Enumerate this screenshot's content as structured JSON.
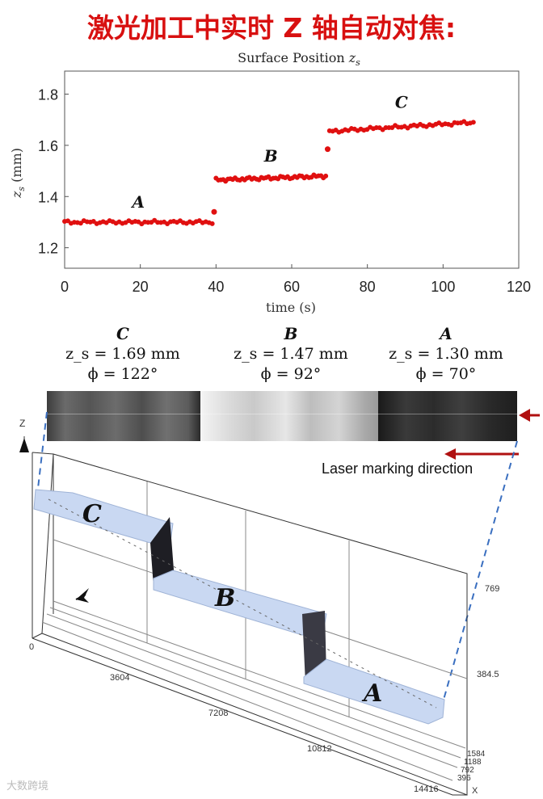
{
  "header": {
    "title": "激光加工中实时 Z 轴自动对焦:"
  },
  "chart_data": {
    "type": "scatter",
    "title": "Surface Position z_s",
    "xlabel": "time (s)",
    "ylabel": "z_s (mm)",
    "xlim": [
      0,
      120
    ],
    "ylim": [
      1.12,
      1.89
    ],
    "xticks": [
      0,
      20,
      40,
      60,
      80,
      100,
      120
    ],
    "yticks": [
      1.2,
      1.4,
      1.6,
      1.8
    ],
    "marker_color": "#e01010",
    "segments": [
      {
        "label": "A",
        "t_start": 0,
        "t_end": 39,
        "z_start": 1.3,
        "z_end": 1.3
      },
      {
        "label": "B",
        "t_start": 40,
        "t_end": 69,
        "z_start": 1.465,
        "z_end": 1.48
      },
      {
        "label": "C",
        "t_start": 70,
        "t_end": 108,
        "z_start": 1.655,
        "z_end": 1.69
      }
    ],
    "transition_points": [
      {
        "x": 39.5,
        "y": 1.34
      },
      {
        "x": 69.5,
        "y": 1.585
      }
    ]
  },
  "labels": {
    "title_prefix": "Surface Position ",
    "title_var": "z",
    "title_sub": "s",
    "ylabel_var": "z",
    "ylabel_sub": "s",
    "ylabel_unit": " (mm)",
    "xlabel": "time (s)"
  },
  "annotations": [
    {
      "zone": "C",
      "zs": "z_s = 1.69 mm",
      "phi": "ϕ = 122°"
    },
    {
      "zone": "B",
      "zs": "z_s = 1.47 mm",
      "phi": "ϕ = 92°"
    },
    {
      "zone": "A",
      "zs": "z_s = 1.30 mm",
      "phi": "ϕ = 70°"
    }
  ],
  "laser": {
    "label": "Laser marking direction",
    "arrow_color": "#b01010"
  },
  "diagram": {
    "z_axis_label": "Z",
    "x_axis_label": "X",
    "left_ticks": [
      "0",
      "3604",
      "7208",
      "10812",
      "14416"
    ],
    "right_ticks": [
      "769",
      "384.5"
    ],
    "y_ticks": [
      "1584",
      "1188",
      "792",
      "396"
    ],
    "zone_labels": [
      "C",
      "B",
      "A"
    ],
    "surface_color": "#c9d8f2",
    "dash_color": "#3a6fc0"
  },
  "watermark": "大数跨境"
}
